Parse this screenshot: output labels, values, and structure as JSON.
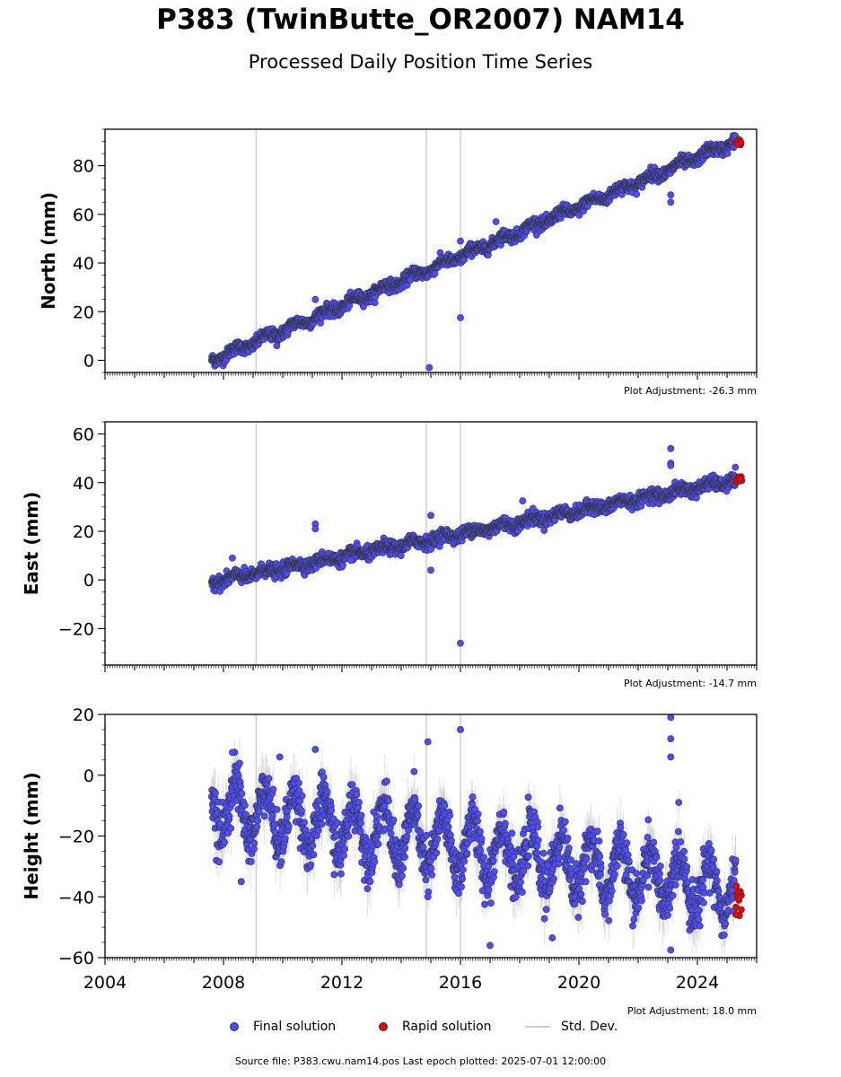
{
  "title": "P383 (TwinButte_OR2007) NAM14",
  "subtitle": "Processed Daily Position Time Series",
  "legend": {
    "final": "Final solution",
    "rapid": "Rapid solution",
    "std": "Std. Dev."
  },
  "source_text": "Source file: P383.cwu.nam14.pos  Last epoch plotted: 2025-07-01 12:00:00",
  "colors": {
    "final": "#4d4dff",
    "rapid": "#ee0000",
    "std": "#cccccc",
    "edge": "#333333"
  },
  "chart_data": [
    {
      "type": "scatter",
      "ylabel": "North (mm)",
      "adjustment": "Plot Adjustment: -26.3 mm",
      "xlim": [
        2004,
        2026
      ],
      "ylim": [
        -5,
        95
      ],
      "x_ticks": [
        2004,
        2008,
        2012,
        2016,
        2020,
        2024
      ],
      "x_ticklabels": false,
      "y_ticks": [
        0,
        20,
        40,
        60,
        80
      ],
      "y_tick_labels": [
        "0",
        "20",
        "40",
        "60",
        "80"
      ],
      "vlines": [
        2009.1,
        2014.85,
        2016.0
      ],
      "trend": {
        "x0": 2007.6,
        "y0": 0,
        "x1": 2025.3,
        "y1": 90
      },
      "seasonal_amp": 1.2,
      "noise": 1.2,
      "outliers": [
        [
          2014.95,
          -3
        ],
        [
          2016.0,
          17.5
        ],
        [
          2016.0,
          49
        ],
        [
          2023.1,
          65
        ],
        [
          2023.1,
          68
        ],
        [
          2009.8,
          6
        ],
        [
          2011.1,
          25
        ],
        [
          2017.2,
          57
        ]
      ],
      "rapid": {
        "x0": 2025.3,
        "x1": 2025.5,
        "ymin": 88,
        "ymax": 91
      }
    },
    {
      "type": "scatter",
      "ylabel": "East (mm)",
      "adjustment": "Plot Adjustment: -14.7 mm",
      "xlim": [
        2004,
        2026
      ],
      "ylim": [
        -35,
        65
      ],
      "x_ticks": [
        2004,
        2008,
        2012,
        2016,
        2020,
        2024
      ],
      "x_ticklabels": false,
      "y_ticks": [
        -20,
        0,
        20,
        40,
        60
      ],
      "y_tick_labels": [
        "−20",
        "0",
        "20",
        "40",
        "60"
      ],
      "vlines": [
        2009.1,
        2014.85,
        2016.0
      ],
      "trend": {
        "x0": 2007.6,
        "y0": -1,
        "x1": 2025.3,
        "y1": 41
      },
      "seasonal_amp": 1.0,
      "noise": 1.3,
      "outliers": [
        [
          2015.0,
          4
        ],
        [
          2016.0,
          -26
        ],
        [
          2015.0,
          26.5
        ],
        [
          2023.1,
          54
        ],
        [
          2023.1,
          48
        ],
        [
          2023.1,
          47
        ],
        [
          2011.1,
          23
        ],
        [
          2011.1,
          21
        ],
        [
          2008.3,
          9
        ],
        [
          2012.3,
          8
        ],
        [
          2018.1,
          32.5
        ]
      ],
      "rapid": {
        "x0": 2025.3,
        "x1": 2025.5,
        "ymin": 40,
        "ymax": 43
      }
    },
    {
      "type": "scatter",
      "ylabel": "Height (mm)",
      "adjustment": "Plot Adjustment: 18.0 mm",
      "xlim": [
        2004,
        2026
      ],
      "ylim": [
        -60,
        20
      ],
      "x_ticks": [
        2004,
        2008,
        2012,
        2016,
        2020,
        2024
      ],
      "x_ticklabels": true,
      "x_tick_labels": [
        "2004",
        "2008",
        "2012",
        "2016",
        "2020",
        "2024"
      ],
      "y_ticks": [
        -60,
        -40,
        -20,
        0,
        20
      ],
      "y_tick_labels": [
        "−60",
        "−40",
        "−20",
        "0",
        "20"
      ],
      "vlines": [
        2009.1,
        2014.85,
        2016.0
      ],
      "trend": {
        "x0": 2007.6,
        "y0": -10,
        "x1": 2025.3,
        "y1": -38
      },
      "seasonal_amp": 9,
      "noise": 4,
      "outliers": [
        [
          2014.9,
          11
        ],
        [
          2016.0,
          15
        ],
        [
          2023.1,
          19
        ],
        [
          2023.1,
          12
        ],
        [
          2023.1,
          6
        ],
        [
          2023.1,
          -57.5
        ],
        [
          2017.0,
          -56
        ],
        [
          2019.1,
          -53.5
        ],
        [
          2014.9,
          -40
        ],
        [
          2011.1,
          8.5
        ],
        [
          2008.3,
          7.5
        ],
        [
          2009.9,
          6
        ],
        [
          2008.6,
          -35
        ]
      ],
      "rapid": {
        "x0": 2025.3,
        "x1": 2025.5,
        "ymin": -49,
        "ymax": -35
      }
    }
  ]
}
